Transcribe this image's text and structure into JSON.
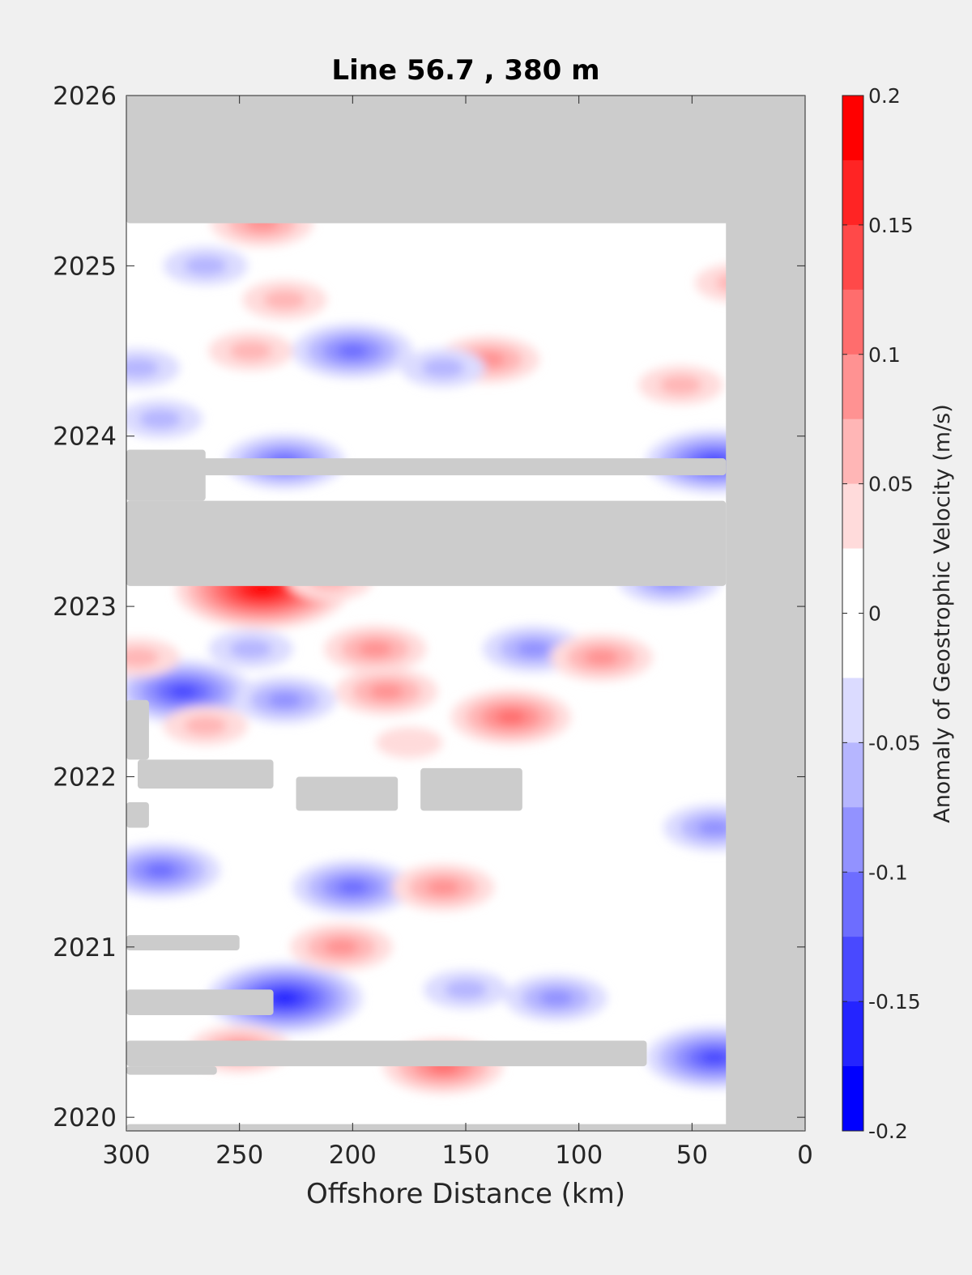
{
  "chart_data": {
    "type": "heatmap",
    "title": "Line 56.7 , 380 m",
    "xlabel": "Offshore Distance (km)",
    "ylabel": "",
    "x_reversed": true,
    "xlim": [
      300,
      0
    ],
    "ylim": [
      2019.92,
      2026
    ],
    "xticks": [
      300,
      250,
      200,
      150,
      100,
      50,
      0
    ],
    "yticks": [
      2020,
      2021,
      2022,
      2023,
      2024,
      2025,
      2026
    ],
    "colorbar": {
      "label": "Anomaly of Geostrophic Velocity (m/s)",
      "range": [
        -0.2,
        0.2
      ],
      "ticks": [
        0.2,
        0.15,
        0.1,
        0.05,
        0,
        -0.05,
        -0.1,
        -0.15,
        -0.2
      ],
      "tick_labels": [
        "0.2",
        "0.15",
        "0.1",
        "0.05",
        "0",
        "-0.05",
        "-0.1",
        "-0.15",
        "-0.2"
      ],
      "levels": 16,
      "negative_color": "#0000ff",
      "positive_color": "#ff0000",
      "zero_color": "#ffffff"
    },
    "missing_color": "#cccccc",
    "grid": false,
    "anomalies": [
      {
        "x": 240,
        "y": 2023.1,
        "value": 0.19
      },
      {
        "x": 275,
        "y": 2022.5,
        "value": -0.14
      },
      {
        "x": 230,
        "y": 2020.7,
        "value": -0.16
      },
      {
        "x": 200,
        "y": 2024.5,
        "value": -0.11
      },
      {
        "x": 200,
        "y": 2021.35,
        "value": -0.11
      },
      {
        "x": 40,
        "y": 2023.85,
        "value": -0.15
      },
      {
        "x": 40,
        "y": 2020.35,
        "value": -0.13
      },
      {
        "x": 285,
        "y": 2021.45,
        "value": -0.1
      },
      {
        "x": 130,
        "y": 2022.35,
        "value": 0.11
      },
      {
        "x": 190,
        "y": 2022.75,
        "value": 0.09
      },
      {
        "x": 185,
        "y": 2022.5,
        "value": 0.08
      },
      {
        "x": 230,
        "y": 2022.45,
        "value": -0.09
      },
      {
        "x": 245,
        "y": 2022.75,
        "value": -0.07
      },
      {
        "x": 120,
        "y": 2022.75,
        "value": -0.08
      },
      {
        "x": 90,
        "y": 2022.7,
        "value": 0.08
      },
      {
        "x": 160,
        "y": 2021.35,
        "value": 0.08
      },
      {
        "x": 205,
        "y": 2021.0,
        "value": 0.08
      },
      {
        "x": 250,
        "y": 2020.4,
        "value": 0.09
      },
      {
        "x": 160,
        "y": 2020.3,
        "value": 0.1
      },
      {
        "x": 110,
        "y": 2020.7,
        "value": -0.09
      },
      {
        "x": 150,
        "y": 2020.75,
        "value": -0.07
      },
      {
        "x": 140,
        "y": 2024.45,
        "value": 0.08
      },
      {
        "x": 245,
        "y": 2024.5,
        "value": 0.06
      },
      {
        "x": 55,
        "y": 2024.3,
        "value": 0.07
      },
      {
        "x": 230,
        "y": 2023.85,
        "value": -0.1
      },
      {
        "x": 285,
        "y": 2024.1,
        "value": -0.05
      },
      {
        "x": 210,
        "y": 2023.15,
        "value": 0.06
      },
      {
        "x": 60,
        "y": 2023.15,
        "value": -0.08
      },
      {
        "x": 40,
        "y": 2021.7,
        "value": -0.09
      },
      {
        "x": 240,
        "y": 2025.25,
        "value": 0.08
      },
      {
        "x": 265,
        "y": 2025.0,
        "value": -0.06
      },
      {
        "x": 30,
        "y": 2024.9,
        "value": 0.06
      },
      {
        "x": 160,
        "y": 2024.4,
        "value": -0.05
      },
      {
        "x": 265,
        "y": 2022.3,
        "value": 0.05
      },
      {
        "x": 295,
        "y": 2022.7,
        "value": 0.05
      },
      {
        "x": 295,
        "y": 2024.4,
        "value": -0.07
      },
      {
        "x": 230,
        "y": 2024.8,
        "value": 0.05
      },
      {
        "x": 175,
        "y": 2022.2,
        "value": 0.04
      }
    ],
    "missing_regions": [
      {
        "x": [
          300,
          0
        ],
        "y": [
          2025.25,
          2026
        ]
      },
      {
        "x": [
          35,
          0
        ],
        "y": [
          2019.92,
          2026
        ]
      },
      {
        "x": [
          300,
          35
        ],
        "y": [
          2023.12,
          2023.62
        ]
      },
      {
        "x": [
          300,
          35
        ],
        "y": [
          2023.77,
          2023.87
        ]
      },
      {
        "x": [
          300,
          265
        ],
        "y": [
          2023.62,
          2023.92
        ]
      },
      {
        "x": [
          300,
          290
        ],
        "y": [
          2022.1,
          2022.45
        ]
      },
      {
        "x": [
          295,
          235
        ],
        "y": [
          2021.93,
          2022.1
        ]
      },
      {
        "x": [
          225,
          180
        ],
        "y": [
          2021.8,
          2022.0
        ]
      },
      {
        "x": [
          170,
          125
        ],
        "y": [
          2021.8,
          2022.05
        ]
      },
      {
        "x": [
          300,
          290
        ],
        "y": [
          2021.7,
          2021.85
        ]
      },
      {
        "x": [
          300,
          250
        ],
        "y": [
          2020.98,
          2021.07
        ]
      },
      {
        "x": [
          300,
          235
        ],
        "y": [
          2020.6,
          2020.75
        ]
      },
      {
        "x": [
          300,
          70
        ],
        "y": [
          2020.3,
          2020.45
        ]
      },
      {
        "x": [
          300,
          260
        ],
        "y": [
          2020.25,
          2020.3
        ]
      },
      {
        "x": [
          300,
          0
        ],
        "y": [
          2019.92,
          2019.96
        ]
      }
    ]
  }
}
